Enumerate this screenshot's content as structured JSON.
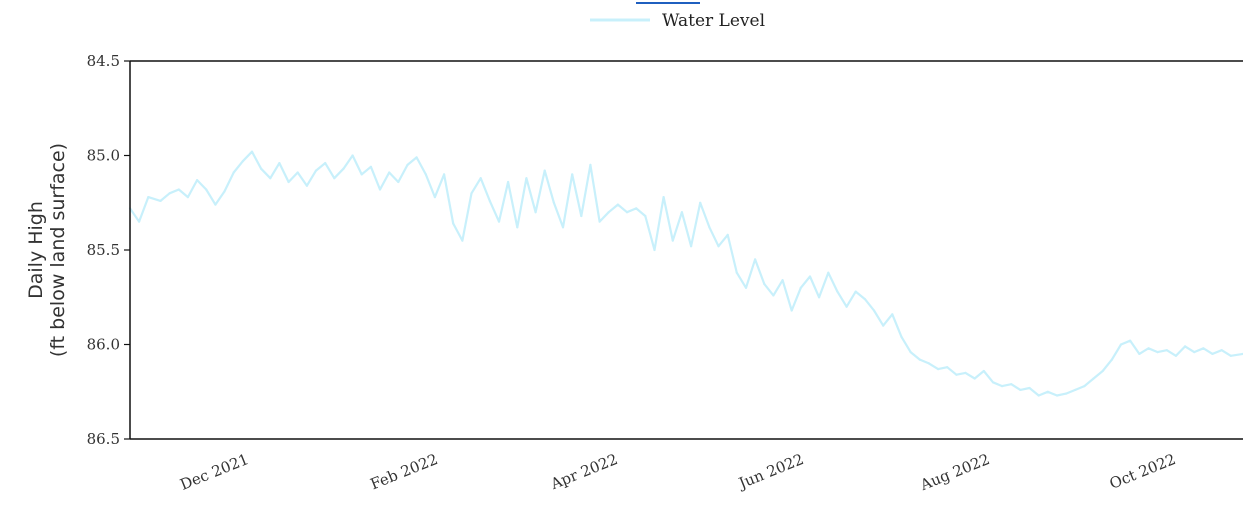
{
  "chart_data": {
    "type": "line",
    "title": "",
    "legend": {
      "placement": "top-center",
      "entries": [
        "Water Level"
      ]
    },
    "ylabel_line1": "Daily High",
    "ylabel_line2": "(ft below land surface)",
    "xlabel": "",
    "y_inverted": true,
    "ylim": [
      84.5,
      86.5
    ],
    "yticks": [
      84.5,
      85.0,
      85.5,
      86.0,
      86.5
    ],
    "ytick_labels": [
      "84.5",
      "85.0",
      "85.5",
      "86.0",
      "86.5"
    ],
    "xlim": [
      "2021-10-26",
      "2022-10-26"
    ],
    "xticks": [
      "2021-12-01",
      "2022-02-01",
      "2022-04-01",
      "2022-06-01",
      "2022-08-01",
      "2022-10-01"
    ],
    "xtick_labels": [
      "Dec 2021",
      "Feb 2022",
      "Apr 2022",
      "Jun 2022",
      "Aug 2022",
      "Oct 2022"
    ],
    "grid": false,
    "line_color": "#c8f0fb",
    "series": [
      {
        "name": "Water Level",
        "points": [
          [
            "2021-10-26",
            85.28
          ],
          [
            "2021-10-29",
            85.35
          ],
          [
            "2021-11-01",
            85.22
          ],
          [
            "2021-11-05",
            85.24
          ],
          [
            "2021-11-08",
            85.2
          ],
          [
            "2021-11-11",
            85.18
          ],
          [
            "2021-11-14",
            85.22
          ],
          [
            "2021-11-17",
            85.13
          ],
          [
            "2021-11-20",
            85.18
          ],
          [
            "2021-11-23",
            85.26
          ],
          [
            "2021-11-26",
            85.19
          ],
          [
            "2021-11-29",
            85.09
          ],
          [
            "2021-12-02",
            85.03
          ],
          [
            "2021-12-05",
            84.98
          ],
          [
            "2021-12-08",
            85.07
          ],
          [
            "2021-12-11",
            85.12
          ],
          [
            "2021-12-14",
            85.04
          ],
          [
            "2021-12-17",
            85.14
          ],
          [
            "2021-12-20",
            85.09
          ],
          [
            "2021-12-23",
            85.16
          ],
          [
            "2021-12-26",
            85.08
          ],
          [
            "2021-12-29",
            85.04
          ],
          [
            "2022-01-01",
            85.12
          ],
          [
            "2022-01-04",
            85.07
          ],
          [
            "2022-01-07",
            85.0
          ],
          [
            "2022-01-10",
            85.1
          ],
          [
            "2022-01-13",
            85.06
          ],
          [
            "2022-01-16",
            85.18
          ],
          [
            "2022-01-19",
            85.09
          ],
          [
            "2022-01-22",
            85.14
          ],
          [
            "2022-01-25",
            85.05
          ],
          [
            "2022-01-28",
            85.01
          ],
          [
            "2022-01-31",
            85.1
          ],
          [
            "2022-02-03",
            85.22
          ],
          [
            "2022-02-06",
            85.1
          ],
          [
            "2022-02-09",
            85.36
          ],
          [
            "2022-02-12",
            85.45
          ],
          [
            "2022-02-15",
            85.2
          ],
          [
            "2022-02-18",
            85.12
          ],
          [
            "2022-02-21",
            85.24
          ],
          [
            "2022-02-24",
            85.35
          ],
          [
            "2022-02-27",
            85.14
          ],
          [
            "2022-03-02",
            85.38
          ],
          [
            "2022-03-05",
            85.12
          ],
          [
            "2022-03-08",
            85.3
          ],
          [
            "2022-03-11",
            85.08
          ],
          [
            "2022-03-14",
            85.25
          ],
          [
            "2022-03-17",
            85.38
          ],
          [
            "2022-03-20",
            85.1
          ],
          [
            "2022-03-23",
            85.32
          ],
          [
            "2022-03-26",
            85.05
          ],
          [
            "2022-03-29",
            85.35
          ],
          [
            "2022-04-01",
            85.3
          ],
          [
            "2022-04-04",
            85.26
          ],
          [
            "2022-04-07",
            85.3
          ],
          [
            "2022-04-10",
            85.28
          ],
          [
            "2022-04-13",
            85.32
          ],
          [
            "2022-04-16",
            85.5
          ],
          [
            "2022-04-19",
            85.22
          ],
          [
            "2022-04-22",
            85.45
          ],
          [
            "2022-04-25",
            85.3
          ],
          [
            "2022-04-28",
            85.48
          ],
          [
            "2022-05-01",
            85.25
          ],
          [
            "2022-05-04",
            85.38
          ],
          [
            "2022-05-07",
            85.48
          ],
          [
            "2022-05-10",
            85.42
          ],
          [
            "2022-05-13",
            85.62
          ],
          [
            "2022-05-16",
            85.7
          ],
          [
            "2022-05-19",
            85.55
          ],
          [
            "2022-05-22",
            85.68
          ],
          [
            "2022-05-25",
            85.74
          ],
          [
            "2022-05-28",
            85.66
          ],
          [
            "2022-05-31",
            85.82
          ],
          [
            "2022-06-03",
            85.7
          ],
          [
            "2022-06-06",
            85.64
          ],
          [
            "2022-06-09",
            85.75
          ],
          [
            "2022-06-12",
            85.62
          ],
          [
            "2022-06-15",
            85.72
          ],
          [
            "2022-06-18",
            85.8
          ],
          [
            "2022-06-21",
            85.72
          ],
          [
            "2022-06-24",
            85.76
          ],
          [
            "2022-06-27",
            85.82
          ],
          [
            "2022-06-30",
            85.9
          ],
          [
            "2022-07-03",
            85.84
          ],
          [
            "2022-07-06",
            85.96
          ],
          [
            "2022-07-09",
            86.04
          ],
          [
            "2022-07-12",
            86.08
          ],
          [
            "2022-07-15",
            86.1
          ],
          [
            "2022-07-18",
            86.13
          ],
          [
            "2022-07-21",
            86.12
          ],
          [
            "2022-07-24",
            86.16
          ],
          [
            "2022-07-27",
            86.15
          ],
          [
            "2022-07-30",
            86.18
          ],
          [
            "2022-08-02",
            86.14
          ],
          [
            "2022-08-05",
            86.2
          ],
          [
            "2022-08-08",
            86.22
          ],
          [
            "2022-08-11",
            86.21
          ],
          [
            "2022-08-14",
            86.24
          ],
          [
            "2022-08-17",
            86.23
          ],
          [
            "2022-08-20",
            86.27
          ],
          [
            "2022-08-23",
            86.25
          ],
          [
            "2022-08-26",
            86.27
          ],
          [
            "2022-08-29",
            86.26
          ],
          [
            "2022-09-01",
            86.24
          ],
          [
            "2022-09-04",
            86.22
          ],
          [
            "2022-09-07",
            86.18
          ],
          [
            "2022-09-10",
            86.14
          ],
          [
            "2022-09-13",
            86.08
          ],
          [
            "2022-09-16",
            86.0
          ],
          [
            "2022-09-19",
            85.98
          ],
          [
            "2022-09-22",
            86.05
          ],
          [
            "2022-09-25",
            86.02
          ],
          [
            "2022-09-28",
            86.04
          ],
          [
            "2022-10-01",
            86.03
          ],
          [
            "2022-10-04",
            86.06
          ],
          [
            "2022-10-07",
            86.01
          ],
          [
            "2022-10-10",
            86.04
          ],
          [
            "2022-10-13",
            86.02
          ],
          [
            "2022-10-16",
            86.05
          ],
          [
            "2022-10-19",
            86.03
          ],
          [
            "2022-10-22",
            86.06
          ],
          [
            "2022-10-26",
            86.05
          ]
        ]
      }
    ]
  }
}
